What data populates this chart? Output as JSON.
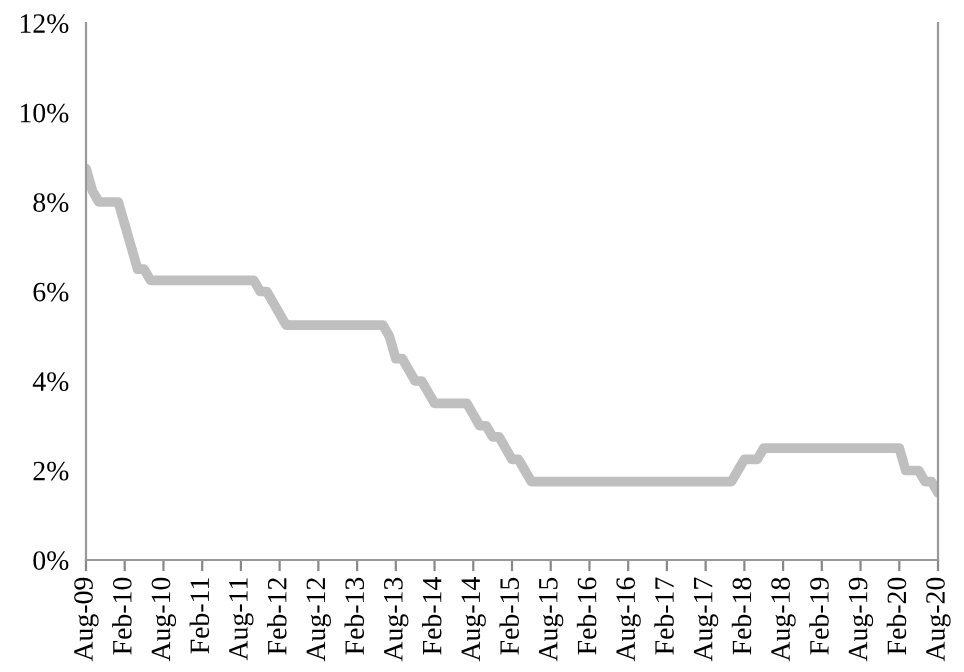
{
  "chart_data": {
    "type": "line",
    "categories": [
      "Aug-09",
      null,
      null,
      null,
      null,
      null,
      "Feb-10",
      null,
      null,
      null,
      null,
      null,
      "Aug-10",
      null,
      null,
      null,
      null,
      null,
      "Feb-11",
      null,
      null,
      null,
      null,
      null,
      "Aug-11",
      null,
      null,
      null,
      null,
      null,
      "Feb-12",
      null,
      null,
      null,
      null,
      null,
      "Aug-12",
      null,
      null,
      null,
      null,
      null,
      "Feb-13",
      null,
      null,
      null,
      null,
      null,
      "Aug-13",
      null,
      null,
      null,
      null,
      null,
      "Feb-14",
      null,
      null,
      null,
      null,
      null,
      "Aug-14",
      null,
      null,
      null,
      null,
      null,
      "Feb-15",
      null,
      null,
      null,
      null,
      null,
      "Aug-15",
      null,
      null,
      null,
      null,
      null,
      "Feb-16",
      null,
      null,
      null,
      null,
      null,
      "Aug-16",
      null,
      null,
      null,
      null,
      null,
      "Feb-17",
      null,
      null,
      null,
      null,
      null,
      "Aug-17",
      null,
      null,
      null,
      null,
      null,
      "Feb-18",
      null,
      null,
      null,
      null,
      null,
      "Aug-18",
      null,
      null,
      null,
      null,
      null,
      "Feb-19",
      null,
      null,
      null,
      null,
      null,
      "Aug-19",
      null,
      null,
      null,
      null,
      null,
      "Feb-20",
      null,
      null,
      null,
      null,
      null,
      "Aug-20"
    ],
    "series": [
      {
        "color": "#bfbfbf",
        "values": [
          8.75,
          8.25,
          8.0,
          8.0,
          8.0,
          8.0,
          7.5,
          7.0,
          6.5,
          6.5,
          6.25,
          6.25,
          6.25,
          6.25,
          6.25,
          6.25,
          6.25,
          6.25,
          6.25,
          6.25,
          6.25,
          6.25,
          6.25,
          6.25,
          6.25,
          6.25,
          6.25,
          6.0,
          6.0,
          5.75,
          5.5,
          5.25,
          5.25,
          5.25,
          5.25,
          5.25,
          5.25,
          5.25,
          5.25,
          5.25,
          5.25,
          5.25,
          5.25,
          5.25,
          5.25,
          5.25,
          5.25,
          5.0,
          4.5,
          4.5,
          4.25,
          4.0,
          4.0,
          3.75,
          3.5,
          3.5,
          3.5,
          3.5,
          3.5,
          3.5,
          3.25,
          3.0,
          3.0,
          2.75,
          2.75,
          2.5,
          2.25,
          2.25,
          2.0,
          1.75,
          1.75,
          1.75,
          1.75,
          1.75,
          1.75,
          1.75,
          1.75,
          1.75,
          1.75,
          1.75,
          1.75,
          1.75,
          1.75,
          1.75,
          1.75,
          1.75,
          1.75,
          1.75,
          1.75,
          1.75,
          1.75,
          1.75,
          1.75,
          1.75,
          1.75,
          1.75,
          1.75,
          1.75,
          1.75,
          1.75,
          1.75,
          2.0,
          2.25,
          2.25,
          2.25,
          2.5,
          2.5,
          2.5,
          2.5,
          2.5,
          2.5,
          2.5,
          2.5,
          2.5,
          2.5,
          2.5,
          2.5,
          2.5,
          2.5,
          2.5,
          2.5,
          2.5,
          2.5,
          2.5,
          2.5,
          2.5,
          2.5,
          2.0,
          2.0,
          2.0,
          1.75,
          1.75,
          1.5
        ]
      }
    ],
    "ylim": [
      0,
      12
    ],
    "yticks": [
      {
        "value": 0,
        "label": "0%"
      },
      {
        "value": 2,
        "label": "2%"
      },
      {
        "value": 4,
        "label": "4%"
      },
      {
        "value": 6,
        "label": "6%"
      },
      {
        "value": 8,
        "label": "8%"
      },
      {
        "value": 10,
        "label": "10%"
      },
      {
        "value": 12,
        "label": "12%"
      }
    ],
    "grid": false,
    "legend": false,
    "marker": "none",
    "line_style": "solid"
  }
}
